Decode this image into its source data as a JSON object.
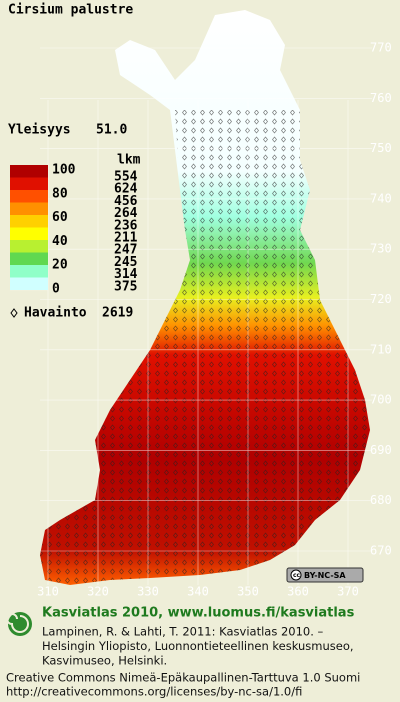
{
  "title": "Cirsium palustre",
  "frequency": {
    "label": "Yleisyys",
    "value": "51.0"
  },
  "legend": {
    "count_header": "lkm",
    "scale_labels": [
      "100",
      "80",
      "60",
      "40",
      "20",
      "0"
    ],
    "counts": [
      "554",
      "624",
      "456",
      "264",
      "236",
      "211",
      "247",
      "245",
      "314",
      "375"
    ],
    "colors": [
      "#b00000",
      "#e01000",
      "#ff5000",
      "#ff9000",
      "#ffd000",
      "#ffff00",
      "#b8f030",
      "#60d850",
      "#90ffc8",
      "#d0ffff"
    ]
  },
  "observations": {
    "label": "Havainto",
    "value": "2619"
  },
  "y_labels": [
    "770",
    "760",
    "750",
    "740",
    "730",
    "720",
    "710",
    "700",
    "690",
    "680",
    "670"
  ],
  "x_labels": [
    "310",
    "320",
    "330",
    "340",
    "350",
    "360",
    "370"
  ],
  "badge": "BY-NC-SA",
  "footer": {
    "heading": "Kasviatlas 2010, www.luomus.fi/kasviatlas",
    "citation": [
      "Lampinen, R. & Lahti, T. 2011: Kasviatlas 2010. –",
      "Helsingin Yliopisto, Luonnontieteellinen keskusmuseo,",
      "Kasvimuseo, Helsinki."
    ],
    "license": [
      "Creative Commons Nimeä-Epäkaupallinen-Tarttuva 1.0 Suomi",
      "http://creativecommons.org/licenses/by-nc-sa/1.0/fi"
    ]
  }
}
